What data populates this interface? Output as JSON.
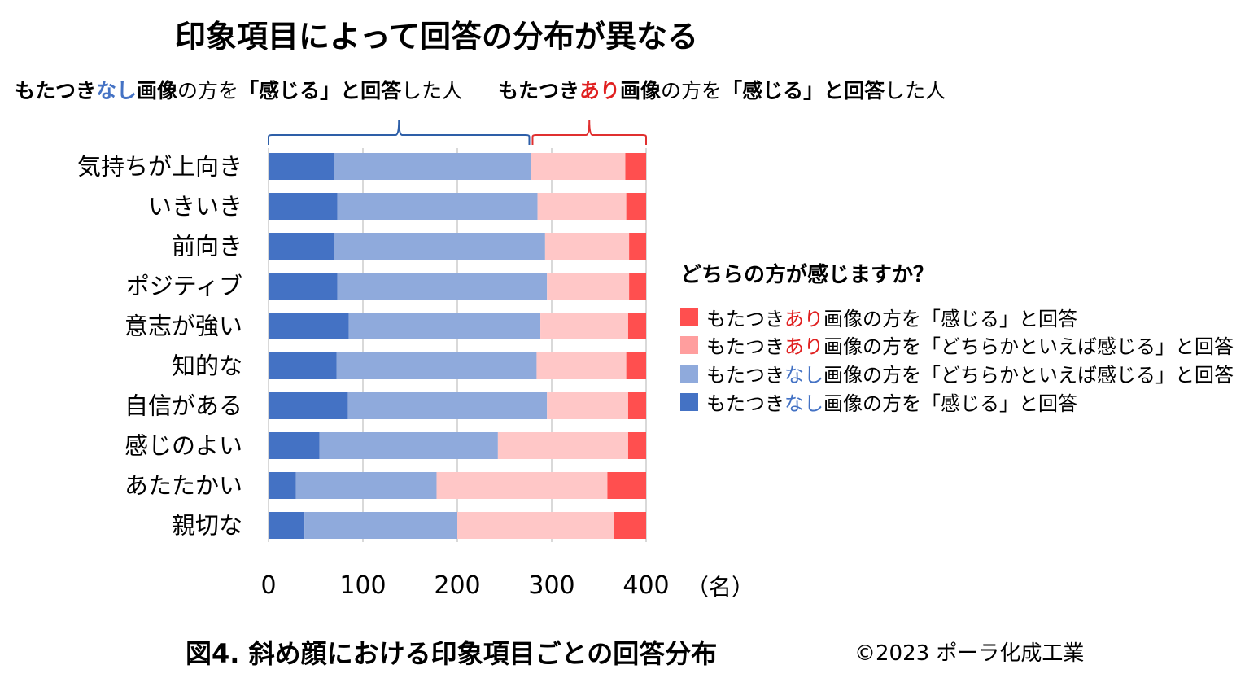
{
  "title": "印象項目によって回答の分布が異なる",
  "group_labels": {
    "nashi": {
      "pre": "もたつき",
      "key": "なし",
      "mid": "画像",
      "post1": "の方を",
      "bold2": "「感じる」と回答",
      "post2": "した人"
    },
    "ari": {
      "pre": "もたつき",
      "key": "あり",
      "mid": "画像",
      "post1": "の方を",
      "bold2": "「感じる」と回答",
      "post2": "した人"
    }
  },
  "legend": {
    "title": "どちらの方が感じますか？",
    "items": [
      {
        "pre": "もたつき",
        "key": "あり",
        "post": "画像の方を「感じる」と回答",
        "color": "#FF4F4F",
        "key_color": "#E02020"
      },
      {
        "pre": "もたつき",
        "key": "あり",
        "post": "画像の方を「どちらかといえば感じる」と回答",
        "color": "#FF9E9E",
        "key_color": "#E02020"
      },
      {
        "pre": "もたつき",
        "key": "なし",
        "post": "画像の方を「どちらかといえば感じる」と回答",
        "color": "#8FAADC",
        "key_color": "#4472C4"
      },
      {
        "pre": "もたつき",
        "key": "なし",
        "post": "画像の方を「感じる」と回答",
        "color": "#4472C4",
        "key_color": "#4472C4"
      }
    ]
  },
  "unit_label": "（名）",
  "caption": "図4. 斜め顔における印象項目ごとの回答分布",
  "copyright": "©2023 ポーラ化成工業",
  "chart_data": {
    "type": "bar",
    "orientation": "horizontal",
    "stacked": true,
    "categories": [
      "気持ちが上向き",
      "いきいき",
      "前向き",
      "ポジティブ",
      "意志が強い",
      "知的な",
      "自信がある",
      "感じのよい",
      "あたたかい",
      "親切な"
    ],
    "series": [
      {
        "name": "もたつきなし画像の方を「感じる」と回答",
        "color": "#4472C4",
        "values": [
          69,
          73,
          69,
          73,
          85,
          72,
          84,
          54,
          29,
          38
        ]
      },
      {
        "name": "もたつきなし画像の方を「どちらかといえば感じる」と回答",
        "color": "#8FAADC",
        "values": [
          209,
          212,
          224,
          222,
          203,
          212,
          211,
          189,
          149,
          162
        ]
      },
      {
        "name": "もたつきあり画像の方を「どちらかといえば感じる」と回答",
        "color": "#FFC7C7",
        "values": [
          100,
          94,
          89,
          87,
          93,
          95,
          86,
          138,
          181,
          166
        ]
      },
      {
        "name": "もたつきあり画像の方を「感じる」と回答",
        "color": "#FF4F4F",
        "values": [
          22,
          21,
          18,
          18,
          19,
          21,
          19,
          19,
          41,
          34
        ]
      }
    ],
    "xlim": [
      0,
      400
    ],
    "xticks": [
      0,
      100,
      200,
      300,
      400
    ],
    "grid": true,
    "bracket_split": 278
  }
}
